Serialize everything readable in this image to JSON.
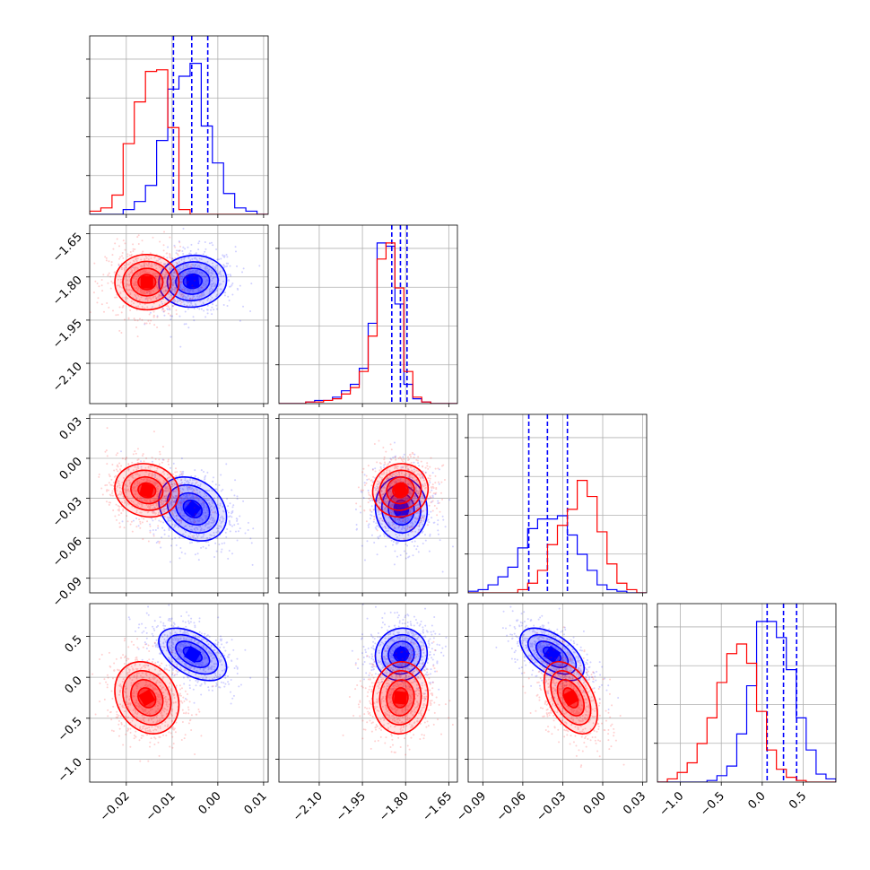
{
  "chart_data": {
    "type": "corner",
    "grid": true,
    "parameters": [
      {
        "range": [
          -0.028,
          0.011
        ],
        "ticks": [
          -0.02,
          -0.01,
          0.0,
          0.01
        ],
        "tick_labels": [
          "−0.02",
          "−0.01",
          "0.00",
          "0.01"
        ]
      },
      {
        "range": [
          -2.24,
          -1.62
        ],
        "ticks": [
          -2.1,
          -1.95,
          -1.8,
          -1.65
        ],
        "tick_labels": [
          "−2.10",
          "−1.95",
          "−1.80",
          "−1.65"
        ]
      },
      {
        "range": [
          -0.101,
          0.033
        ],
        "ticks": [
          -0.09,
          -0.06,
          -0.03,
          0.0,
          0.03
        ],
        "tick_labels": [
          "−0.09",
          "−0.06",
          "−0.03",
          "0.00",
          "0.03"
        ]
      },
      {
        "range": [
          -1.28,
          0.9
        ],
        "ticks": [
          -1.0,
          -0.5,
          0.0,
          0.5
        ],
        "tick_labels": [
          "−1.0",
          "−0.5",
          "0.0",
          "0.5"
        ]
      }
    ],
    "series": [
      {
        "color": "#0000ff",
        "mean": [
          -0.0055,
          -1.815,
          -0.038,
          0.28
        ],
        "std": [
          0.0037,
          0.045,
          0.012,
          0.16
        ],
        "quantiles": [
          [
            -0.0097,
            -0.0057,
            -0.0022
          ],
          [
            -1.848,
            -1.818,
            -1.795
          ],
          [
            -0.0555,
            -0.0415,
            -0.0265
          ],
          [
            0.06,
            0.26,
            0.42
          ]
        ],
        "hist": [
          [
            0,
            0,
            0,
            3,
            8,
            18,
            46,
            78,
            86,
            94,
            55,
            32,
            13,
            4,
            2,
            0
          ],
          [
            0,
            0,
            0,
            1,
            2,
            2,
            4,
            8,
            12,
            22,
            50,
            100,
            98,
            62,
            12,
            3,
            1,
            0,
            0,
            0
          ],
          [
            1,
            2,
            5,
            10,
            16,
            28,
            40,
            46,
            46,
            48,
            36,
            24,
            14,
            5,
            2,
            1,
            0,
            0
          ],
          [
            0,
            0,
            0,
            0,
            0,
            1,
            4,
            10,
            30,
            60,
            100,
            100,
            90,
            70,
            40,
            20,
            5,
            2
          ]
        ]
      },
      {
        "color": "#ff0000",
        "mean": [
          -0.0155,
          -1.818,
          -0.024,
          -0.25
        ],
        "std": [
          0.0035,
          0.048,
          0.01,
          0.22
        ],
        "quantiles": [],
        "hist": [
          [
            2,
            4,
            12,
            44,
            70,
            89,
            90,
            54,
            3,
            0,
            0,
            0,
            0,
            0,
            0,
            0
          ],
          [
            0,
            0,
            0,
            1,
            1,
            2,
            3,
            6,
            10,
            20,
            42,
            90,
            100,
            72,
            20,
            4,
            1,
            0,
            0,
            0
          ],
          [
            0,
            0,
            0,
            0,
            0,
            2,
            6,
            14,
            30,
            42,
            52,
            70,
            60,
            38,
            18,
            6,
            2,
            0
          ],
          [
            0,
            2,
            6,
            12,
            24,
            40,
            62,
            80,
            86,
            74,
            44,
            20,
            8,
            3,
            1,
            0,
            0,
            0
          ]
        ]
      }
    ],
    "correlations": {
      "0-1": [
        0.05,
        0.0
      ],
      "0-2": [
        -0.25,
        -0.1
      ],
      "1-2": [
        -0.05,
        0.05
      ],
      "0-3": [
        -0.5,
        -0.2
      ],
      "1-3": [
        0.05,
        0.05
      ],
      "2-3": [
        -0.55,
        -0.45
      ]
    }
  }
}
